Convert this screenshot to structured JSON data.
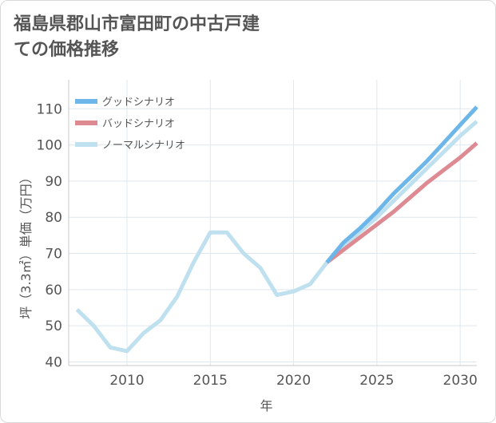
{
  "title": "福島県郡山市富田町の中古戸建ての価格推移",
  "chart_data": {
    "type": "line",
    "title": "福島県郡山市富田町の中古戸建ての価格推移",
    "xlabel": "年",
    "ylabel": "坪（3.3㎡）単価（万円）",
    "xlim": [
      2006.5,
      2031
    ],
    "ylim": [
      39,
      118
    ],
    "x_ticks": [
      2010,
      2015,
      2020,
      2025,
      2030
    ],
    "y_ticks": [
      40,
      50,
      60,
      70,
      80,
      90,
      100,
      110
    ],
    "grid": true,
    "legend_position": "top-left",
    "series": [
      {
        "name": "グッドシナリオ",
        "color": "#6cb6e9",
        "x": [
          2022,
          2023,
          2024,
          2025,
          2026,
          2027,
          2028,
          2029,
          2030,
          2031
        ],
        "values": [
          67.5,
          73,
          77,
          81.5,
          86.5,
          91,
          95.5,
          100.5,
          105.5,
          110.5
        ]
      },
      {
        "name": "バッドシナリオ",
        "color": "#dd8a93",
        "x": [
          2022,
          2023,
          2024,
          2025,
          2026,
          2027,
          2028,
          2029,
          2030,
          2031
        ],
        "values": [
          67.5,
          71,
          74.5,
          78,
          81.5,
          85.5,
          89.5,
          93,
          96.5,
          100.5
        ]
      },
      {
        "name": "ノーマルシナリオ",
        "color": "#bfe0ef",
        "x": [
          2007,
          2008,
          2009,
          2010,
          2011,
          2012,
          2013,
          2014,
          2015,
          2016,
          2017,
          2018,
          2019,
          2020,
          2021,
          2022,
          2023,
          2024,
          2025,
          2026,
          2027,
          2028,
          2029,
          2030,
          2031
        ],
        "values": [
          54.5,
          50,
          44,
          43,
          48,
          51.5,
          58,
          67.5,
          75.8,
          75.8,
          70,
          66,
          58.5,
          59.5,
          61.5,
          67.5,
          72,
          76,
          80,
          84.5,
          89,
          93.5,
          98,
          102.5,
          106.5
        ]
      }
    ]
  }
}
